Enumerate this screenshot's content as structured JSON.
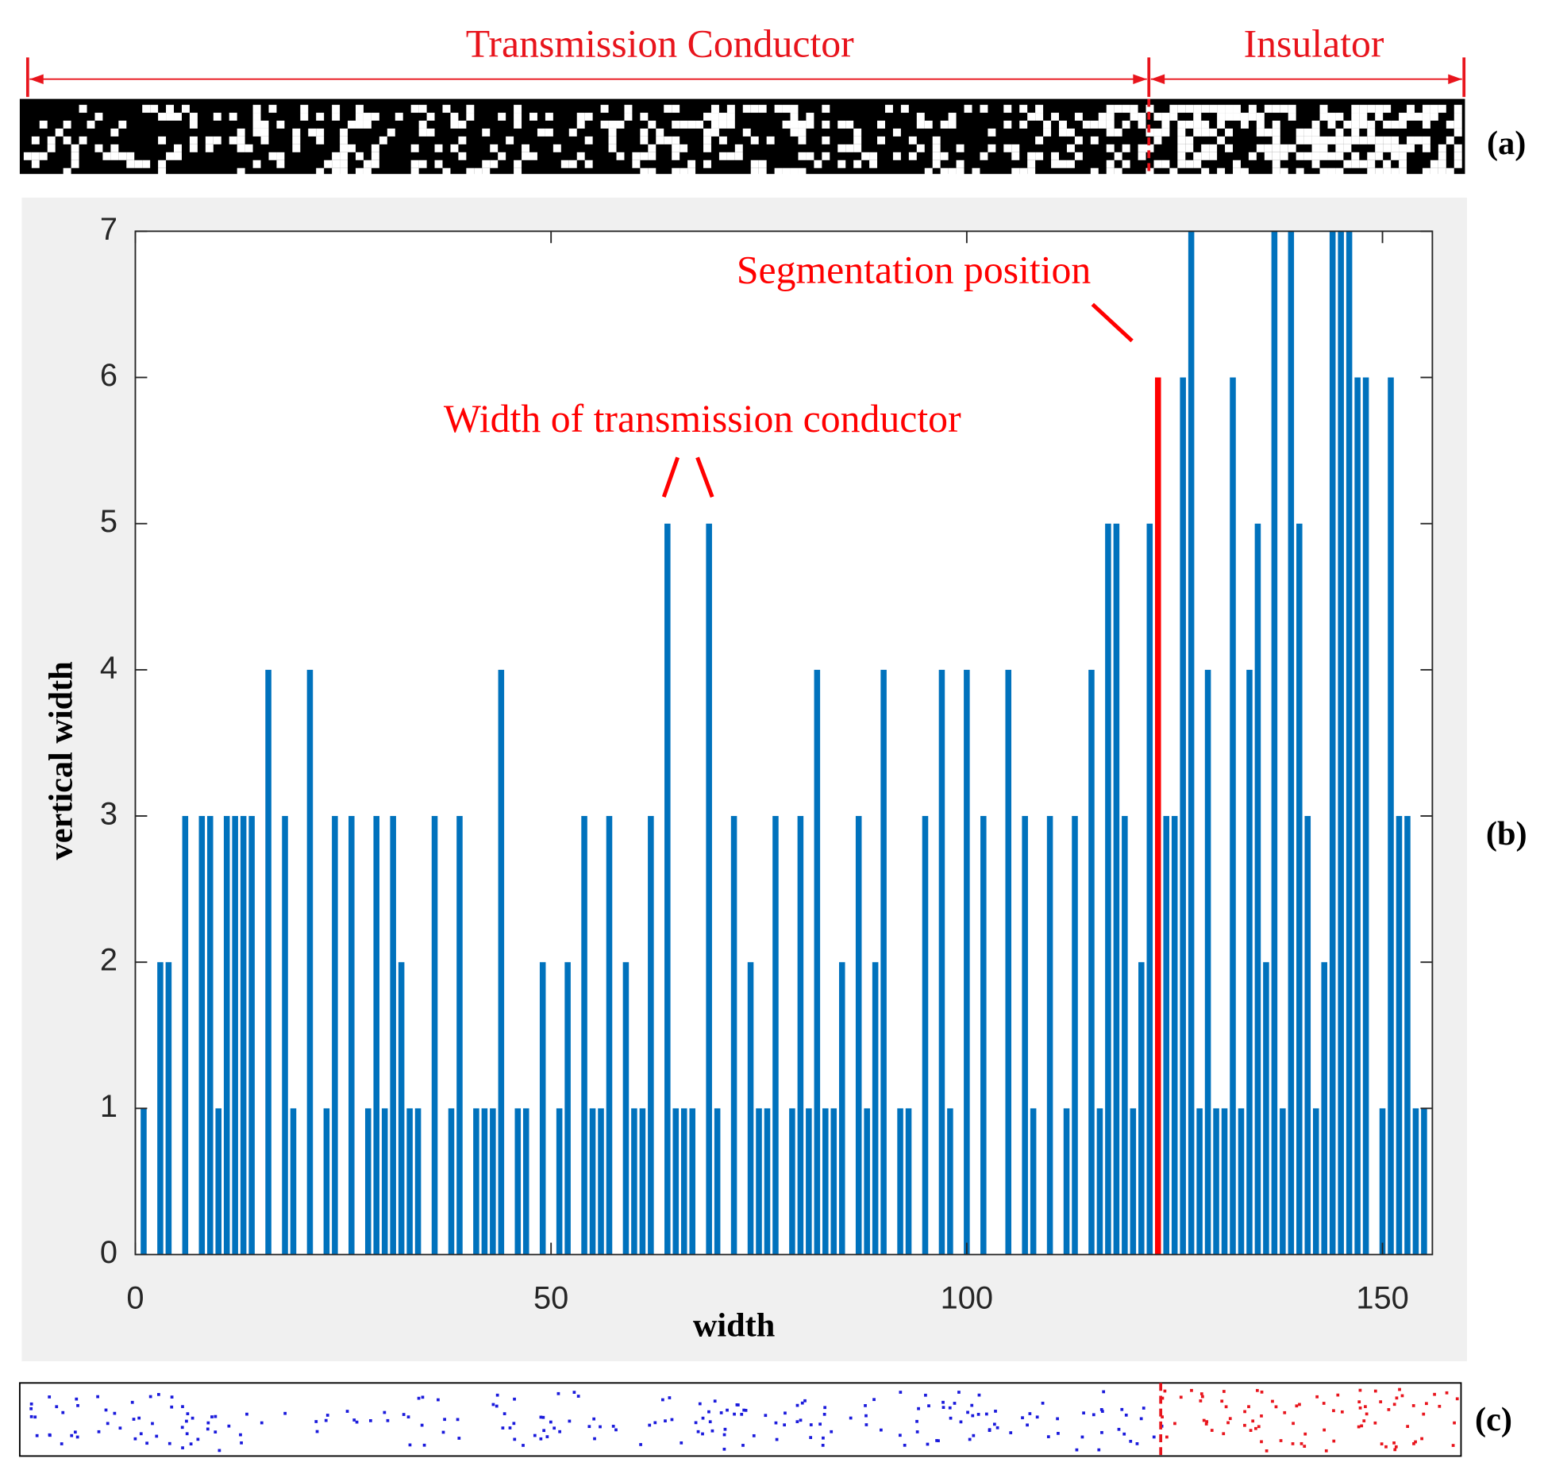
{
  "figure": {
    "top_labels": [
      "Transmission Conductor",
      "Insulator"
    ],
    "panel_labels": [
      "(a)",
      "(b)",
      "(c)"
    ]
  },
  "chart_data": {
    "type": "bar",
    "xlabel": "width",
    "ylabel": "vertical width",
    "color": "#0072bd",
    "x": [
      1,
      2,
      3,
      4,
      5,
      6,
      7,
      8,
      9,
      10,
      11,
      12,
      13,
      14,
      15,
      16,
      17,
      18,
      19,
      20,
      21,
      22,
      23,
      24,
      25,
      26,
      27,
      28,
      29,
      30,
      31,
      32,
      33,
      34,
      35,
      36,
      37,
      38,
      39,
      40,
      41,
      42,
      43,
      44,
      45,
      46,
      47,
      48,
      49,
      50,
      51,
      52,
      53,
      54,
      55,
      56,
      57,
      58,
      59,
      60,
      61,
      62,
      63,
      64,
      65,
      66,
      67,
      68,
      69,
      70,
      71,
      72,
      73,
      74,
      75,
      76,
      77,
      78,
      79,
      80,
      81,
      82,
      83,
      84,
      85,
      86,
      87,
      88,
      89,
      90,
      91,
      92,
      93,
      94,
      95,
      96,
      97,
      98,
      99,
      100,
      101,
      102,
      103,
      104,
      105,
      106,
      107,
      108,
      109,
      110,
      111,
      112,
      113,
      114,
      115,
      116,
      117,
      118,
      119,
      120,
      121,
      122,
      123,
      124,
      125,
      126,
      127,
      128,
      129,
      130,
      131,
      132,
      133,
      134,
      135,
      136,
      137,
      138,
      139,
      140,
      141,
      142,
      143,
      144,
      145,
      146,
      147,
      148,
      149,
      150,
      151,
      152,
      153,
      154,
      155
    ],
    "values": [
      1,
      0,
      2,
      2,
      0,
      3,
      0,
      3,
      3,
      1,
      3,
      3,
      3,
      3,
      0,
      4,
      0,
      3,
      1,
      0,
      4,
      0,
      1,
      3,
      0,
      3,
      0,
      1,
      3,
      1,
      3,
      2,
      1,
      1,
      0,
      3,
      0,
      1,
      3,
      0,
      1,
      1,
      1,
      4,
      0,
      1,
      1,
      0,
      2,
      0,
      1,
      2,
      0,
      3,
      1,
      1,
      3,
      0,
      2,
      1,
      1,
      3,
      0,
      5,
      1,
      1,
      1,
      0,
      5,
      1,
      0,
      3,
      0,
      2,
      1,
      1,
      3,
      0,
      1,
      3,
      1,
      4,
      1,
      1,
      2,
      0,
      3,
      1,
      2,
      4,
      0,
      1,
      1,
      0,
      3,
      0,
      4,
      1,
      0,
      4,
      0,
      3,
      0,
      0,
      4,
      0,
      3,
      1,
      0,
      3,
      0,
      1,
      3,
      0,
      4,
      1,
      5,
      5,
      3,
      1,
      2,
      5,
      6,
      3,
      3,
      6,
      7,
      1,
      4,
      1,
      1,
      6,
      1,
      4,
      5,
      2,
      7,
      1,
      7,
      5,
      3,
      1,
      2,
      7,
      7,
      7,
      6,
      6,
      0,
      1,
      6,
      3,
      3,
      1,
      1
    ],
    "xlim": [
      0,
      156
    ],
    "ylim": [
      0,
      7
    ],
    "xticks": [
      0,
      50,
      100,
      150
    ],
    "yticks": [
      0,
      1,
      2,
      3,
      4,
      5,
      6,
      7
    ],
    "segmentation": {
      "x": 123,
      "color": "#ff0000"
    },
    "annotations": [
      "Segmentation position",
      "Width of transmission conductor"
    ]
  }
}
